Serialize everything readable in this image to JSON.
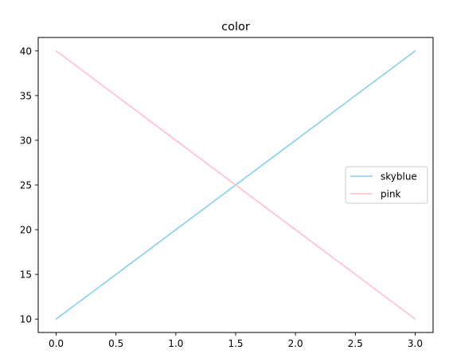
{
  "chart_data": {
    "type": "line",
    "title": "color",
    "xlabel": "",
    "ylabel": "",
    "x": [
      0,
      1,
      2,
      3
    ],
    "xlim": [
      -0.15,
      3.15
    ],
    "ylim": [
      8.5,
      41.5
    ],
    "xticks": [
      0.0,
      0.5,
      1.0,
      1.5,
      2.0,
      2.5,
      3.0
    ],
    "xtick_labels": [
      "0.0",
      "0.5",
      "1.0",
      "1.5",
      "2.0",
      "2.5",
      "3.0"
    ],
    "yticks": [
      10,
      15,
      20,
      25,
      30,
      35,
      40
    ],
    "ytick_labels": [
      "10",
      "15",
      "20",
      "25",
      "30",
      "35",
      "40"
    ],
    "grid": false,
    "legend_position": "center-right",
    "series": [
      {
        "name": "skyblue",
        "color": "#87ceeb",
        "values": [
          10,
          20,
          30,
          40
        ]
      },
      {
        "name": "pink",
        "color": "#ffc0cb",
        "values": [
          40,
          30,
          20,
          10
        ]
      }
    ]
  }
}
